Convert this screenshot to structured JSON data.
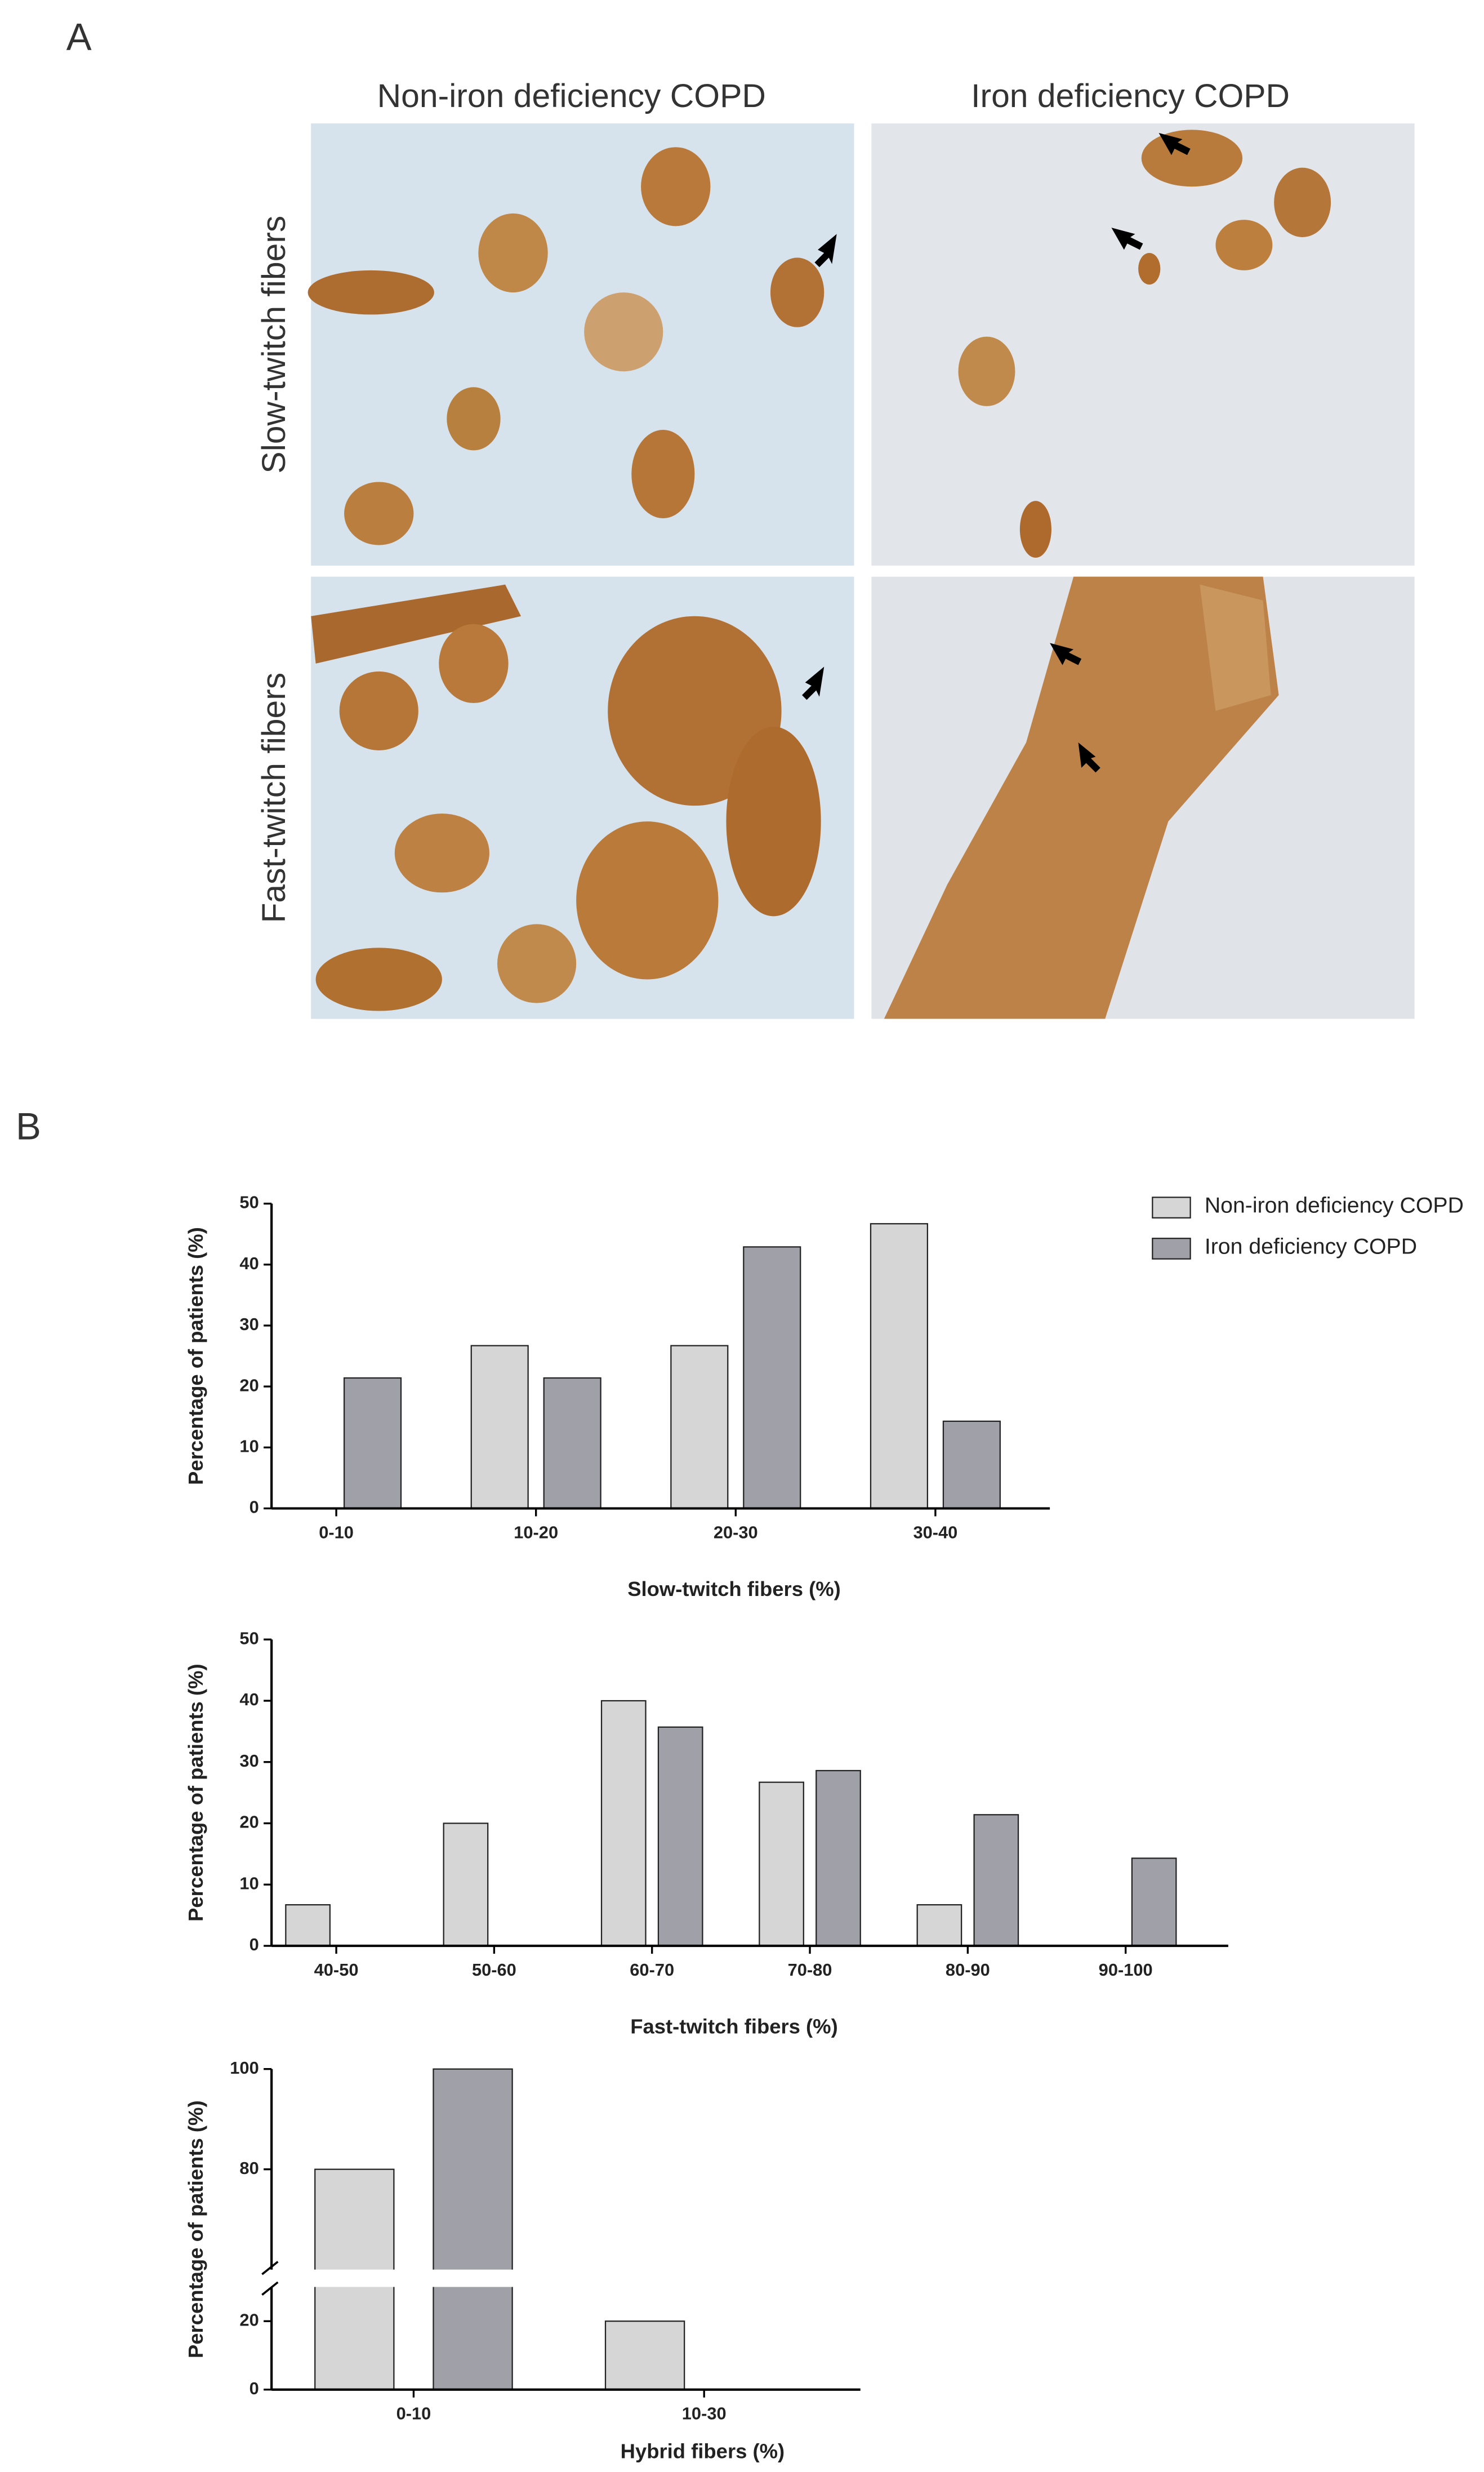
{
  "panel_a": {
    "label": "A",
    "column_titles": [
      "Non-iron deficiency COPD",
      "Iron deficiency COPD"
    ],
    "row_titles": [
      "Slow-twitch fibers",
      "Fast-twitch fibers"
    ]
  },
  "panel_b_label": "B",
  "chart_data": [
    {
      "type": "bar",
      "x_label": "Slow-twitch fibers (%)",
      "y_label": "Percentage of patients (%)",
      "categories": [
        "0-10",
        "10-20",
        "20-30",
        "30-40"
      ],
      "series": [
        {
          "name": "Non-iron deficiency COPD",
          "color": "#d6d6d6",
          "values": [
            0,
            26.7,
            26.7,
            46.7
          ]
        },
        {
          "name": "Iron deficiency COPD",
          "color": "#a0a0a8",
          "values": [
            21.4,
            21.4,
            42.9,
            14.3
          ]
        }
      ],
      "ylim": [
        0,
        50
      ],
      "yticks": [
        0,
        10,
        20,
        30,
        40,
        50
      ],
      "legend": "top-right"
    },
    {
      "type": "bar",
      "x_label": "Fast-twitch fibers (%)",
      "y_label": "Percentage of patients (%)",
      "categories": [
        "40-50",
        "50-60",
        "60-70",
        "70-80",
        "80-90",
        "90-100"
      ],
      "series": [
        {
          "color": "#d6d6d6",
          "values": [
            6.7,
            20,
            40,
            26.7,
            6.7,
            0
          ]
        },
        {
          "color": "#a0a0a8",
          "values": [
            0,
            0,
            35.7,
            28.6,
            21.4,
            14.3
          ]
        }
      ],
      "ylim": [
        0,
        50
      ],
      "yticks": [
        0,
        10,
        20,
        30,
        40,
        50
      ]
    },
    {
      "type": "bar",
      "x_label": "Hybrid fibers (%)",
      "y_label": "Percentage of patients (%)",
      "categories": [
        "0-10",
        "10-30"
      ],
      "series": [
        {
          "color": "#d6d6d6",
          "values": [
            80,
            20
          ]
        },
        {
          "color": "#a0a0a8",
          "values": [
            100,
            0
          ]
        }
      ],
      "ylim": [
        0,
        100
      ],
      "y_break": [
        30,
        60
      ],
      "yticks": [
        0,
        20,
        80,
        100
      ]
    }
  ]
}
